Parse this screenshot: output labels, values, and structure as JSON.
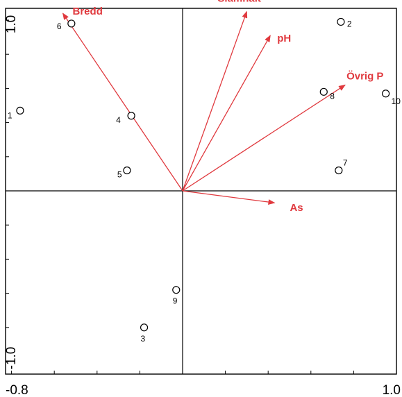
{
  "chart_data": {
    "type": "scatter",
    "subtype": "biplot",
    "title": "",
    "xlabel": "",
    "ylabel": "",
    "xlim": [
      -0.8,
      1.0
    ],
    "ylim": [
      -1.0,
      1.0
    ],
    "grid": false,
    "x_tick_labels": [
      "-0.8",
      "1.0"
    ],
    "y_tick_labels": [
      "1.0",
      "-1.0"
    ],
    "x_tick_values": [
      -0.8,
      -0.6,
      -0.4,
      -0.2,
      0.0,
      0.2,
      0.4,
      0.6,
      0.8,
      1.0
    ],
    "y_tick_values": [
      -1.0,
      -0.8,
      -0.6,
      -0.4,
      -0.2,
      0.0,
      0.2,
      0.4,
      0.6,
      0.8,
      1.0
    ],
    "sites": [
      {
        "label": "1",
        "x": -0.76,
        "y": 0.47
      },
      {
        "label": "2",
        "x": 0.74,
        "y": 0.99
      },
      {
        "label": "3",
        "x": -0.18,
        "y": -0.8
      },
      {
        "label": "4",
        "x": -0.24,
        "y": 0.44
      },
      {
        "label": "5",
        "x": -0.26,
        "y": 0.12
      },
      {
        "label": "6",
        "x": -0.52,
        "y": 0.98
      },
      {
        "label": "7",
        "x": 0.73,
        "y": 0.12
      },
      {
        "label": "8",
        "x": 0.66,
        "y": 0.58
      },
      {
        "label": "9",
        "x": -0.03,
        "y": -0.58
      },
      {
        "label": "10",
        "x": 0.95,
        "y": 0.57
      }
    ],
    "vectors": [
      {
        "label": "Bredd",
        "x": -0.56,
        "y": 1.04
      },
      {
        "label": "Slamhalt",
        "x": 0.3,
        "y": 1.05
      },
      {
        "label": "pH",
        "x": 0.41,
        "y": 0.91
      },
      {
        "label": "Övrig P",
        "x": 0.76,
        "y": 0.62
      },
      {
        "label": "As",
        "x": 0.43,
        "y": -0.07
      }
    ],
    "colors": {
      "vector": "#e0393e",
      "axis": "#000000"
    }
  }
}
